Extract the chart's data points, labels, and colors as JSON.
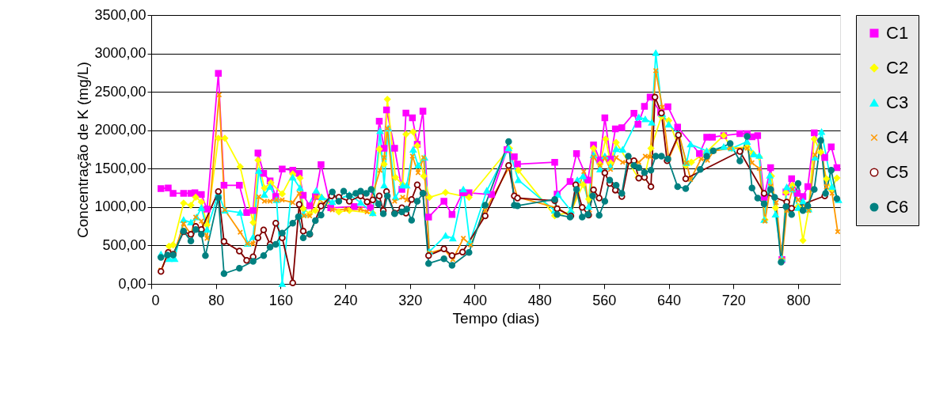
{
  "chart_data": {
    "type": "line",
    "xlabel": "Tempo (dias)",
    "ylabel": "Concentração de K (mg/L)",
    "xlim": [
      0,
      852
    ],
    "xticks": [
      0,
      80,
      160,
      240,
      320,
      400,
      480,
      560,
      640,
      720,
      800
    ],
    "ylim": [
      0,
      3500
    ],
    "yticks": [
      {
        "value": 0,
        "label": "0,00"
      },
      {
        "value": 500,
        "label": "500,00"
      },
      {
        "value": 1000,
        "label": "1000,00"
      },
      {
        "value": 1500,
        "label": "1500,00"
      },
      {
        "value": 2000,
        "label": "2000,00"
      },
      {
        "value": 2500,
        "label": "2500,00"
      },
      {
        "value": 3000,
        "label": "3000,00"
      },
      {
        "value": 3500,
        "label": "3500,00"
      }
    ],
    "grid": "y",
    "legend": "right",
    "line_style": "solid",
    "series": [
      {
        "name": "C1",
        "color": "#ff00ff",
        "marker": "square",
        "x": [
          12,
          21,
          27,
          40,
          49,
          54,
          62,
          69,
          83,
          90,
          109,
          118,
          126,
          132,
          139,
          147,
          154,
          162,
          175,
          183,
          188,
          196,
          203,
          210,
          222,
          251,
          271,
          282,
          288,
          291,
          301,
          310,
          315,
          323,
          329,
          336,
          343,
          362,
          372,
          385,
          393,
          421,
          440,
          449,
          453,
          499,
          502,
          518,
          526,
          540,
          547,
          555,
          561,
          568,
          574,
          582,
          597,
          602,
          610,
          617,
          630,
          639,
          651,
          678,
          687,
          694,
          708,
          728,
          737,
          743,
          750,
          758,
          766,
          780,
          785,
          792,
          799,
          806,
          812,
          820,
          833,
          841,
          848
        ],
        "values": [
          1241,
          1248,
          1179,
          1179,
          1179,
          1186,
          1162,
          972,
          2741,
          1283,
          1283,
          928,
          955,
          1703,
          1438,
          1341,
          1138,
          1496,
          1479,
          1438,
          1152,
          1017,
          1138,
          1552,
          990,
          1007,
          990,
          2117,
          1765,
          2265,
          1765,
          1231,
          2224,
          2162,
          1817,
          2248,
          869,
          1076,
          903,
          1186,
          1186,
          1162,
          1748,
          1655,
          1559,
          1583,
          1169,
          1334,
          1696,
          1352,
          1810,
          1610,
          2162,
          1627,
          2017,
          2034,
          2221,
          2076,
          2310,
          2431,
          2231,
          2307,
          2041,
          1696,
          1910,
          1910,
          1931,
          1955,
          1955,
          1914,
          1931,
          1127,
          1514,
          317,
          1196,
          1369,
          1179,
          1138,
          1265,
          1965,
          1645,
          1783,
          1514
        ]
      },
      {
        "name": "C2",
        "color": "#ffff00",
        "marker": "diamond",
        "x": [
          22,
          27,
          40,
          49,
          55,
          62,
          69,
          83,
          91,
          110,
          126,
          132,
          140,
          148,
          162,
          175,
          184,
          188,
          196,
          203,
          210,
          232,
          245,
          274,
          282,
          288,
          292,
          302,
          311,
          315,
          324,
          329,
          337,
          344,
          364,
          393,
          443,
          454,
          499,
          519,
          534,
          541,
          547,
          555,
          562,
          568,
          575,
          602,
          610,
          618,
          631,
          640,
          661,
          668,
          687,
          708,
          718,
          737,
          744,
          752,
          759,
          767,
          772,
          780,
          785,
          793,
          800,
          806,
          813,
          820,
          828,
          835,
          841,
          848
        ],
        "values": [
          490,
          507,
          1052,
          1024,
          1128,
          1066,
          766,
          1896,
          1896,
          1524,
          800,
          1610,
          1248,
          1317,
          1172,
          1431,
          1376,
          979,
          910,
          955,
          1128,
          938,
          955,
          921,
          1755,
          1558,
          2403,
          1386,
          1293,
          1948,
          1979,
          1800,
          1403,
          1127,
          1190,
          1127,
          1765,
          1479,
          886,
          938,
          1293,
          1103,
          1765,
          1558,
          1886,
          1576,
          1841,
          1386,
          1386,
          1765,
          2179,
          2127,
          1541,
          1583,
          1720,
          1931,
          1765,
          1783,
          1696,
          1652,
          834,
          1403,
          990,
          317,
          1190,
          1283,
          1007,
          565,
          965,
          1886,
          1714,
          1369,
          1231,
          1379
        ]
      },
      {
        "name": "C3",
        "color": "#00ffff",
        "marker": "triangle",
        "x": [
          12,
          22,
          29,
          40,
          49,
          56,
          62,
          69,
          83,
          91,
          110,
          119,
          126,
          133,
          140,
          147,
          155,
          162,
          175,
          184,
          188,
          204,
          211,
          224,
          245,
          259,
          274,
          283,
          288,
          293,
          302,
          311,
          316,
          324,
          330,
          338,
          344,
          364,
          373,
          386,
          394,
          415,
          442,
          454,
          499,
          503,
          519,
          527,
          534,
          541,
          547,
          555,
          561,
          568,
          575,
          583,
          603,
          611,
          619,
          624,
          632,
          640,
          652,
          662,
          667,
          687,
          708,
          718,
          737,
          745,
          752,
          758,
          765,
          772,
          780,
          786,
          793,
          800,
          806,
          813,
          821,
          829,
          842,
          850
        ],
        "values": [
          386,
          324,
          324,
          834,
          800,
          869,
          990,
          707,
          1179,
          955,
          928,
          524,
          610,
          1472,
          1162,
          1265,
          1093,
          0,
          1386,
          1248,
          903,
          1214,
          1128,
          1065,
          1162,
          1059,
          921,
          1990,
          1283,
          2024,
          1127,
          1283,
          1283,
          1748,
          1541,
          1645,
          421,
          628,
          593,
          1231,
          541,
          1214,
          1765,
          1352,
          955,
          1162,
          955,
          1352,
          1403,
          1007,
          1679,
          1490,
          1662,
          1524,
          1755,
          1748,
          2169,
          2145,
          2100,
          3007,
          2214,
          2076,
          1955,
          1576,
          1817,
          1731,
          1783,
          1765,
          1852,
          1686,
          1669,
          834,
          1410,
          903,
          328,
          1259,
          1231,
          990,
          1076,
          972,
          1645,
          1979,
          1265,
          1093
        ]
      },
      {
        "name": "C4",
        "color": "#ff9900",
        "marker": "cross",
        "x": [
          12,
          22,
          28,
          40,
          49,
          55,
          62,
          69,
          84,
          91,
          110,
          119,
          126,
          133,
          140,
          147,
          155,
          162,
          175,
          183,
          189,
          196,
          204,
          224,
          241,
          259,
          267,
          283,
          288,
          292,
          301,
          311,
          316,
          323,
          330,
          337,
          344,
          362,
          373,
          386,
          395,
          413,
          442,
          453,
          502,
          518,
          535,
          542,
          547,
          555,
          561,
          568,
          575,
          583,
          603,
          611,
          617,
          624,
          632,
          640,
          653,
          662,
          667,
          680,
          688,
          696,
          716,
          737,
          743,
          752,
          759,
          766,
          773,
          780,
          786,
          793,
          800,
          813,
          821,
          828,
          835,
          842,
          849
        ],
        "values": [
          179,
          421,
          386,
          783,
          645,
          869,
          817,
          593,
          2462,
          962,
          672,
          524,
          524,
          1134,
          1076,
          1076,
          1093,
          1093,
          1059,
          1179,
          886,
          886,
          1128,
          962,
          972,
          972,
          938,
          1479,
          1645,
          2024,
          1076,
          1127,
          1093,
          1662,
          1448,
          1645,
          403,
          455,
          317,
          593,
          507,
          955,
          1507,
          1128,
          990,
          886,
          1462,
          921,
          1652,
          1541,
          1638,
          1490,
          1645,
          1583,
          1583,
          1662,
          1652,
          2776,
          2300,
          1627,
          1938,
          1576,
          1359,
          1627,
          1610,
          1731,
          1765,
          1765,
          1576,
          1500,
          817,
          1272,
          1059,
          317,
          955,
          1231,
          1093,
          955,
          1679,
          1858,
          1265,
          1179,
          679
        ]
      },
      {
        "name": "C5",
        "color": "#800000",
        "marker": "open_circle",
        "x": [
          12,
          21,
          27,
          40,
          49,
          55,
          62,
          83,
          90,
          109,
          118,
          126,
          132,
          139,
          147,
          154,
          162,
          175,
          183,
          188,
          196,
          210,
          223,
          232,
          245,
          259,
          267,
          274,
          282,
          287,
          291,
          301,
          310,
          315,
          322,
          329,
          336,
          343,
          362,
          372,
          385,
          413,
          442,
          449,
          453,
          499,
          502,
          519,
          525,
          533,
          541,
          547,
          554,
          561,
          567,
          574,
          582,
          591,
          597,
          603,
          610,
          618,
          623,
          631,
          638,
          652,
          661,
          728,
          758,
          786,
          792,
          833
        ],
        "values": [
          162,
          410,
          386,
          679,
          645,
          748,
          707,
          1203,
          552,
          428,
          307,
          352,
          600,
          703,
          514,
          790,
          600,
          14,
          1034,
          686,
          645,
          1014,
          1145,
          1128,
          1076,
          1145,
          1069,
          1093,
          1145,
          955,
          1203,
          921,
          990,
          921,
          1100,
          1290,
          1179,
          369,
          455,
          369,
          414,
          886,
          1541,
          1145,
          1117,
          1083,
          979,
          886,
          1290,
          996,
          896,
          1224,
          1117,
          1445,
          1307,
          1221,
          1138,
          1603,
          1603,
          1376,
          1386,
          1265,
          2431,
          2224,
          1603,
          1938,
          1369,
          1724,
          1179,
          1065,
          983,
          1145
        ]
      },
      {
        "name": "C6",
        "color": "#008080",
        "marker": "circle",
        "x": [
          12,
          20,
          27,
          40,
          49,
          55,
          62,
          67,
          83,
          90,
          109,
          126,
          139,
          147,
          154,
          162,
          175,
          182,
          188,
          196,
          203,
          210,
          224,
          232,
          238,
          245,
          253,
          259,
          266,
          272,
          281,
          287,
          292,
          301,
          310,
          316,
          322,
          329,
          336,
          343,
          362,
          372,
          393,
          413,
          442,
          449,
          453,
          499,
          502,
          518,
          526,
          533,
          540,
          546,
          554,
          561,
          567,
          575,
          582,
          590,
          597,
          603,
          610,
          618,
          624,
          631,
          639,
          651,
          661,
          679,
          687,
          695,
          716,
          728,
          737,
          743,
          750,
          758,
          766,
          771,
          779,
          785,
          792,
          800,
          806,
          812,
          820,
          828,
          834,
          841,
          848
        ],
        "values": [
          345,
          376,
          376,
          686,
          559,
          707,
          645,
          369,
          1121,
          134,
          203,
          293,
          369,
          479,
          514,
          662,
          790,
          876,
          600,
          652,
          824,
          896,
          1196,
          1076,
          1207,
          1145,
          1179,
          1207,
          1179,
          1231,
          1041,
          914,
          1145,
          914,
          938,
          972,
          828,
          1076,
          1179,
          266,
          328,
          241,
          410,
          1024,
          1852,
          1024,
          1017,
          1100,
          903,
          869,
          1231,
          869,
          903,
          1145,
          893,
          1076,
          1352,
          1283,
          1179,
          1662,
          1541,
          1514,
          1448,
          1479,
          1662,
          1662,
          1627,
          1265,
          1241,
          1490,
          1662,
          1731,
          1827,
          1600,
          1920,
          1248,
          1117,
          1041,
          1231,
          1127,
          283,
          1007,
          903,
          1307,
          955,
          1017,
          1231,
          1869,
          1179,
          1479,
          1110
        ]
      }
    ]
  }
}
